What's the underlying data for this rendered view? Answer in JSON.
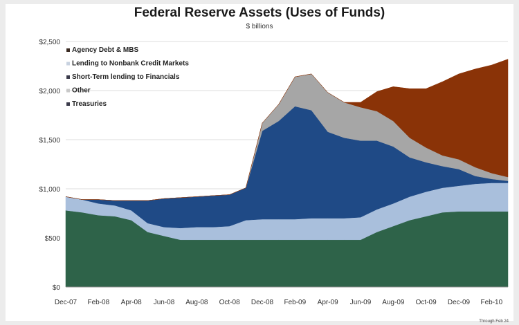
{
  "chart_data": {
    "type": "area",
    "title": "Federal Reserve Assets (Uses of Funds)",
    "subtitle": "$ billions",
    "footnote": "Through Feb 24",
    "x": [
      0,
      1,
      2,
      3,
      4,
      5,
      6,
      7,
      8,
      9,
      10,
      11,
      12,
      13,
      14,
      15,
      16,
      17,
      18,
      19,
      20,
      21,
      22,
      23,
      24,
      25,
      26,
      27
    ],
    "xticks": [
      "Dec-07",
      "Feb-08",
      "Apr-08",
      "Jun-08",
      "Aug-08",
      "Oct-08",
      "Dec-08",
      "Feb-09",
      "Apr-09",
      "Jun-09",
      "Aug-09",
      "Oct-09",
      "Dec-09",
      "Feb-10"
    ],
    "yticks": [
      "$0",
      "$500",
      "$1,000",
      "$1,500",
      "$2,000",
      "$2,500"
    ],
    "ylim": [
      0,
      2500
    ],
    "legend_position": "top-left",
    "series": [
      {
        "name": "Treasuries",
        "color": "#2e6349",
        "values": [
          780,
          760,
          730,
          720,
          680,
          560,
          520,
          480,
          480,
          480,
          480,
          480,
          480,
          480,
          480,
          480,
          480,
          480,
          480,
          560,
          620,
          680,
          720,
          760,
          770,
          770,
          770,
          770
        ]
      },
      {
        "name": "Other",
        "color": "#a9bfdc",
        "values": [
          140,
          130,
          120,
          110,
          100,
          90,
          90,
          120,
          130,
          130,
          140,
          200,
          210,
          210,
          210,
          220,
          220,
          220,
          230,
          230,
          230,
          240,
          250,
          250,
          260,
          280,
          290,
          290
        ]
      },
      {
        "name": "Lending to Nonbank Credit Markets",
        "color": "#1f4a86",
        "values": [
          0,
          0,
          40,
          50,
          100,
          230,
          290,
          310,
          310,
          320,
          320,
          330,
          900,
          1000,
          1150,
          1100,
          880,
          820,
          780,
          700,
          580,
          400,
          300,
          220,
          170,
          80,
          40,
          20
        ]
      },
      {
        "name": "Short-Term lending to Financials",
        "color": "#a6a6a6",
        "values": [
          0,
          0,
          0,
          0,
          0,
          0,
          0,
          0,
          0,
          0,
          0,
          0,
          80,
          170,
          300,
          370,
          400,
          360,
          340,
          300,
          260,
          200,
          150,
          110,
          100,
          90,
          60,
          40
        ]
      },
      {
        "name": "Agency Debt & MBS",
        "color": "#8a3307",
        "values": [
          0,
          0,
          0,
          0,
          0,
          0,
          0,
          0,
          0,
          0,
          0,
          0,
          0,
          0,
          0,
          0,
          0,
          0,
          50,
          200,
          350,
          500,
          600,
          750,
          870,
          1000,
          1100,
          1200
        ]
      }
    ]
  },
  "legend": [
    {
      "label": "Agency Debt & MBS",
      "color": "#3a2a22"
    },
    {
      "label": "Lending to Nonbank Credit Markets",
      "color": "#c8d2e0"
    },
    {
      "label": "Short-Term lending to Financials",
      "color": "#3a3a4a"
    },
    {
      "label": "Other",
      "color": "#c8c8c8"
    },
    {
      "label": "Treasuries",
      "color": "#3a3a4a"
    }
  ]
}
